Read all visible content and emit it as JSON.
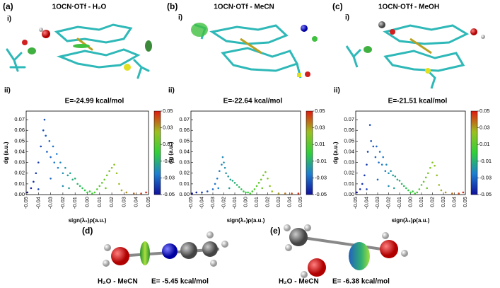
{
  "panels": [
    {
      "label": "(a)",
      "sub_i": "i)",
      "molecule": "1OCN·OTf - H₂O",
      "sub_ii": "ii)"
    },
    {
      "label": "(b)",
      "sub_i": "i)",
      "molecule": "1OCN·OTf - MeCN",
      "sub_ii": "ii)"
    },
    {
      "label": "(c)",
      "sub_i": "i)",
      "molecule": "1OCN·OTf - MeOH",
      "sub_ii": "ii)"
    }
  ],
  "bottom": [
    {
      "label": "(d)",
      "pair": "H₂O - MeCN",
      "energy": "E= -5.45 kcal/mol"
    },
    {
      "label": "(e)",
      "pair": "H₂O - MeCN",
      "energy": "E= -6.38 kcal/mol"
    }
  ],
  "chart_data": [
    {
      "type": "scatter",
      "title": "E=-24.99 kcal/mol",
      "xlabel": "sign(λ₂)ρ(a.u.)",
      "ylabel": "dg (a.u.)",
      "x": [
        -0.049,
        -0.046,
        -0.044,
        -0.042,
        -0.04,
        -0.038,
        -0.036,
        -0.035,
        -0.034,
        -0.033,
        -0.031,
        -0.03,
        -0.028,
        -0.027,
        -0.025,
        -0.024,
        -0.022,
        -0.02,
        -0.018,
        -0.016,
        -0.014,
        -0.012,
        -0.01,
        -0.008,
        -0.006,
        -0.004,
        -0.002,
        0.0,
        0.002,
        0.004,
        0.006,
        0.008,
        0.01,
        0.012,
        0.014,
        0.016,
        0.018,
        0.02,
        0.022,
        0.024,
        0.026,
        0.028,
        0.032,
        0.038,
        0.044,
        0.048,
        -0.03,
        -0.02,
        -0.04,
        -0.015,
        0.015
      ],
      "values": [
        0.002,
        0.006,
        0.012,
        0.02,
        0.03,
        0.045,
        0.06,
        0.07,
        0.055,
        0.04,
        0.05,
        0.035,
        0.045,
        0.03,
        0.038,
        0.025,
        0.03,
        0.02,
        0.025,
        0.018,
        0.02,
        0.014,
        0.015,
        0.01,
        0.008,
        0.006,
        0.004,
        0.002,
        0.003,
        0.001,
        0.002,
        0.005,
        0.008,
        0.011,
        0.014,
        0.018,
        0.022,
        0.025,
        0.028,
        0.02,
        0.01,
        0.004,
        0.002,
        0.001,
        0.001,
        0.002,
        0.015,
        0.008,
        0.005,
        0.006,
        0.006
      ],
      "xlim": [
        -0.05,
        0.05
      ],
      "ylim": [
        0,
        0.078
      ],
      "xticks": [
        -0.05,
        -0.04,
        -0.03,
        -0.02,
        -0.01,
        {
          "value": 0,
          "label": "0.00"
        },
        0.01,
        0.02,
        0.03,
        0.04,
        0.05
      ],
      "yticks": [
        {
          "value": 0,
          "label": "0.00"
        },
        0.01,
        0.02,
        0.03,
        0.04,
        0.05,
        0.06,
        0.07
      ],
      "clim": [
        -0.05,
        0.05
      ],
      "cticks": [
        0.05,
        0.03,
        0.01,
        -0.01,
        -0.03,
        -0.05
      ],
      "colormap": [
        "#10109a",
        "#1e7fd0",
        "#2fcf3a",
        "#9cc020",
        "#e01a10"
      ]
    },
    {
      "type": "scatter",
      "title": "E=-22.64 kcal/mol",
      "xlabel": "sign(λ₂)ρ(a.u.)",
      "ylabel": "dg (a.u.)",
      "x": [
        -0.049,
        -0.045,
        -0.04,
        -0.035,
        -0.03,
        -0.028,
        -0.026,
        -0.024,
        -0.022,
        -0.021,
        -0.02,
        -0.019,
        -0.018,
        -0.016,
        -0.014,
        -0.012,
        -0.01,
        -0.008,
        -0.006,
        -0.004,
        -0.002,
        0.0,
        0.002,
        0.004,
        0.006,
        0.008,
        0.01,
        0.012,
        0.014,
        0.016,
        0.018,
        0.02,
        0.022,
        0.024,
        0.03,
        0.036,
        0.042,
        0.048,
        -0.025,
        -0.015,
        0.015
      ],
      "values": [
        0.001,
        0.002,
        0.002,
        0.003,
        0.005,
        0.01,
        0.015,
        0.022,
        0.028,
        0.035,
        0.03,
        0.025,
        0.02,
        0.017,
        0.014,
        0.013,
        0.011,
        0.009,
        0.007,
        0.005,
        0.003,
        0.002,
        0.002,
        0.001,
        0.003,
        0.005,
        0.008,
        0.011,
        0.014,
        0.018,
        0.021,
        0.015,
        0.008,
        0.003,
        0.001,
        0.001,
        0.001,
        0.001,
        0.006,
        0.006,
        0.006
      ],
      "xlim": [
        -0.05,
        0.05
      ],
      "ylim": [
        0,
        0.078
      ],
      "xticks": [
        -0.05,
        -0.04,
        -0.03,
        -0.02,
        -0.01,
        {
          "value": 0,
          "label": "0.00"
        },
        0.01,
        0.02,
        0.03,
        0.04,
        0.05
      ],
      "yticks": [
        {
          "value": 0,
          "label": "0.00"
        },
        0.01,
        0.02,
        0.03,
        0.04,
        0.05,
        0.06,
        0.07
      ],
      "clim": [
        -0.05,
        0.05
      ],
      "cticks": [
        0.05,
        0.03,
        0.01,
        -0.01,
        -0.03,
        -0.05
      ],
      "colormap": [
        "#10109a",
        "#1e7fd0",
        "#2fcf3a",
        "#9cc020",
        "#e01a10"
      ]
    },
    {
      "type": "scatter",
      "title": "E=-21.51 kcal/mol",
      "xlabel": "sign(λ₂)ρ(a.u.)",
      "ylabel": "dg (a.u.)",
      "x": [
        -0.049,
        -0.046,
        -0.044,
        -0.042,
        -0.04,
        -0.039,
        -0.037,
        -0.036,
        -0.034,
        -0.032,
        -0.031,
        -0.029,
        -0.028,
        -0.026,
        -0.025,
        -0.023,
        -0.022,
        -0.02,
        -0.018,
        -0.016,
        -0.014,
        -0.012,
        -0.01,
        -0.008,
        -0.006,
        -0.004,
        -0.002,
        0.0,
        0.002,
        0.004,
        0.006,
        0.008,
        0.01,
        0.012,
        0.014,
        0.016,
        0.018,
        0.02,
        0.022,
        0.024,
        0.026,
        0.028,
        0.032,
        0.038,
        0.044,
        0.048,
        -0.03,
        -0.02,
        -0.04,
        -0.015,
        0.015
      ],
      "values": [
        0.002,
        0.005,
        0.01,
        0.018,
        0.028,
        0.04,
        0.065,
        0.05,
        0.045,
        0.035,
        0.045,
        0.03,
        0.04,
        0.028,
        0.035,
        0.022,
        0.028,
        0.02,
        0.022,
        0.018,
        0.017,
        0.014,
        0.013,
        0.01,
        0.008,
        0.006,
        0.004,
        0.002,
        0.003,
        0.001,
        0.002,
        0.005,
        0.009,
        0.012,
        0.016,
        0.02,
        0.025,
        0.03,
        0.027,
        0.018,
        0.009,
        0.004,
        0.002,
        0.001,
        0.001,
        0.002,
        0.014,
        0.008,
        0.005,
        0.006,
        0.006
      ],
      "xlim": [
        -0.05,
        0.05
      ],
      "ylim": [
        0,
        0.078
      ],
      "xticks": [
        -0.05,
        -0.04,
        -0.03,
        -0.02,
        -0.01,
        {
          "value": 0,
          "label": "0.00"
        },
        0.01,
        0.02,
        0.03,
        0.04,
        0.05
      ],
      "yticks": [
        {
          "value": 0,
          "label": "0.00"
        },
        0.01,
        0.02,
        0.03,
        0.04,
        0.05,
        0.06,
        0.07
      ],
      "clim": [
        -0.05,
        0.05
      ],
      "cticks": [
        0.05,
        0.03,
        0.01,
        -0.01,
        -0.03,
        -0.05
      ],
      "colormap": [
        "#10109a",
        "#1e7fd0",
        "#2fcf3a",
        "#9cc020",
        "#e01a10"
      ]
    }
  ]
}
